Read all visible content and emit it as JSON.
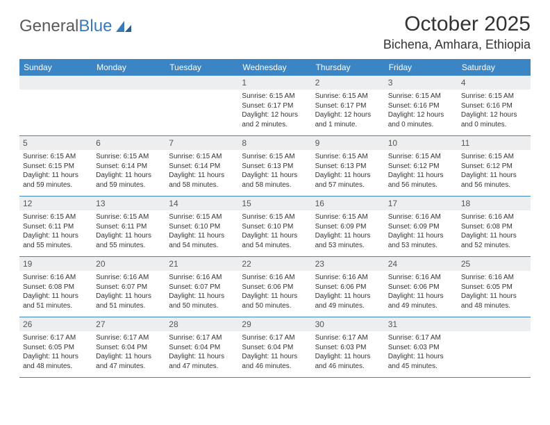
{
  "logo": {
    "textA": "General",
    "textB": "Blue"
  },
  "title": "October 2025",
  "location": "Bichena, Amhara, Ethiopia",
  "colors": {
    "header_bg": "#3c85c4",
    "header_fg": "#ffffff",
    "daynum_bg": "#eceeef",
    "border": "#3c85c4",
    "text": "#333333"
  },
  "weekdays": [
    "Sunday",
    "Monday",
    "Tuesday",
    "Wednesday",
    "Thursday",
    "Friday",
    "Saturday"
  ],
  "labels": {
    "sunrise": "Sunrise: ",
    "sunset": "Sunset: ",
    "daylight": "Daylight: "
  },
  "weeks": [
    [
      {
        "n": "",
        "empty": true
      },
      {
        "n": "",
        "empty": true
      },
      {
        "n": "",
        "empty": true
      },
      {
        "n": "1",
        "sr": "6:15 AM",
        "ss": "6:17 PM",
        "dl": "12 hours and 2 minutes."
      },
      {
        "n": "2",
        "sr": "6:15 AM",
        "ss": "6:17 PM",
        "dl": "12 hours and 1 minute."
      },
      {
        "n": "3",
        "sr": "6:15 AM",
        "ss": "6:16 PM",
        "dl": "12 hours and 0 minutes."
      },
      {
        "n": "4",
        "sr": "6:15 AM",
        "ss": "6:16 PM",
        "dl": "12 hours and 0 minutes."
      }
    ],
    [
      {
        "n": "5",
        "sr": "6:15 AM",
        "ss": "6:15 PM",
        "dl": "11 hours and 59 minutes."
      },
      {
        "n": "6",
        "sr": "6:15 AM",
        "ss": "6:14 PM",
        "dl": "11 hours and 59 minutes."
      },
      {
        "n": "7",
        "sr": "6:15 AM",
        "ss": "6:14 PM",
        "dl": "11 hours and 58 minutes."
      },
      {
        "n": "8",
        "sr": "6:15 AM",
        "ss": "6:13 PM",
        "dl": "11 hours and 58 minutes."
      },
      {
        "n": "9",
        "sr": "6:15 AM",
        "ss": "6:13 PM",
        "dl": "11 hours and 57 minutes."
      },
      {
        "n": "10",
        "sr": "6:15 AM",
        "ss": "6:12 PM",
        "dl": "11 hours and 56 minutes."
      },
      {
        "n": "11",
        "sr": "6:15 AM",
        "ss": "6:12 PM",
        "dl": "11 hours and 56 minutes."
      }
    ],
    [
      {
        "n": "12",
        "sr": "6:15 AM",
        "ss": "6:11 PM",
        "dl": "11 hours and 55 minutes."
      },
      {
        "n": "13",
        "sr": "6:15 AM",
        "ss": "6:11 PM",
        "dl": "11 hours and 55 minutes."
      },
      {
        "n": "14",
        "sr": "6:15 AM",
        "ss": "6:10 PM",
        "dl": "11 hours and 54 minutes."
      },
      {
        "n": "15",
        "sr": "6:15 AM",
        "ss": "6:10 PM",
        "dl": "11 hours and 54 minutes."
      },
      {
        "n": "16",
        "sr": "6:15 AM",
        "ss": "6:09 PM",
        "dl": "11 hours and 53 minutes."
      },
      {
        "n": "17",
        "sr": "6:16 AM",
        "ss": "6:09 PM",
        "dl": "11 hours and 53 minutes."
      },
      {
        "n": "18",
        "sr": "6:16 AM",
        "ss": "6:08 PM",
        "dl": "11 hours and 52 minutes."
      }
    ],
    [
      {
        "n": "19",
        "sr": "6:16 AM",
        "ss": "6:08 PM",
        "dl": "11 hours and 51 minutes."
      },
      {
        "n": "20",
        "sr": "6:16 AM",
        "ss": "6:07 PM",
        "dl": "11 hours and 51 minutes."
      },
      {
        "n": "21",
        "sr": "6:16 AM",
        "ss": "6:07 PM",
        "dl": "11 hours and 50 minutes."
      },
      {
        "n": "22",
        "sr": "6:16 AM",
        "ss": "6:06 PM",
        "dl": "11 hours and 50 minutes."
      },
      {
        "n": "23",
        "sr": "6:16 AM",
        "ss": "6:06 PM",
        "dl": "11 hours and 49 minutes."
      },
      {
        "n": "24",
        "sr": "6:16 AM",
        "ss": "6:06 PM",
        "dl": "11 hours and 49 minutes."
      },
      {
        "n": "25",
        "sr": "6:16 AM",
        "ss": "6:05 PM",
        "dl": "11 hours and 48 minutes."
      }
    ],
    [
      {
        "n": "26",
        "sr": "6:17 AM",
        "ss": "6:05 PM",
        "dl": "11 hours and 48 minutes."
      },
      {
        "n": "27",
        "sr": "6:17 AM",
        "ss": "6:04 PM",
        "dl": "11 hours and 47 minutes."
      },
      {
        "n": "28",
        "sr": "6:17 AM",
        "ss": "6:04 PM",
        "dl": "11 hours and 47 minutes."
      },
      {
        "n": "29",
        "sr": "6:17 AM",
        "ss": "6:04 PM",
        "dl": "11 hours and 46 minutes."
      },
      {
        "n": "30",
        "sr": "6:17 AM",
        "ss": "6:03 PM",
        "dl": "11 hours and 46 minutes."
      },
      {
        "n": "31",
        "sr": "6:17 AM",
        "ss": "6:03 PM",
        "dl": "11 hours and 45 minutes."
      },
      {
        "n": "",
        "empty": true
      }
    ]
  ]
}
